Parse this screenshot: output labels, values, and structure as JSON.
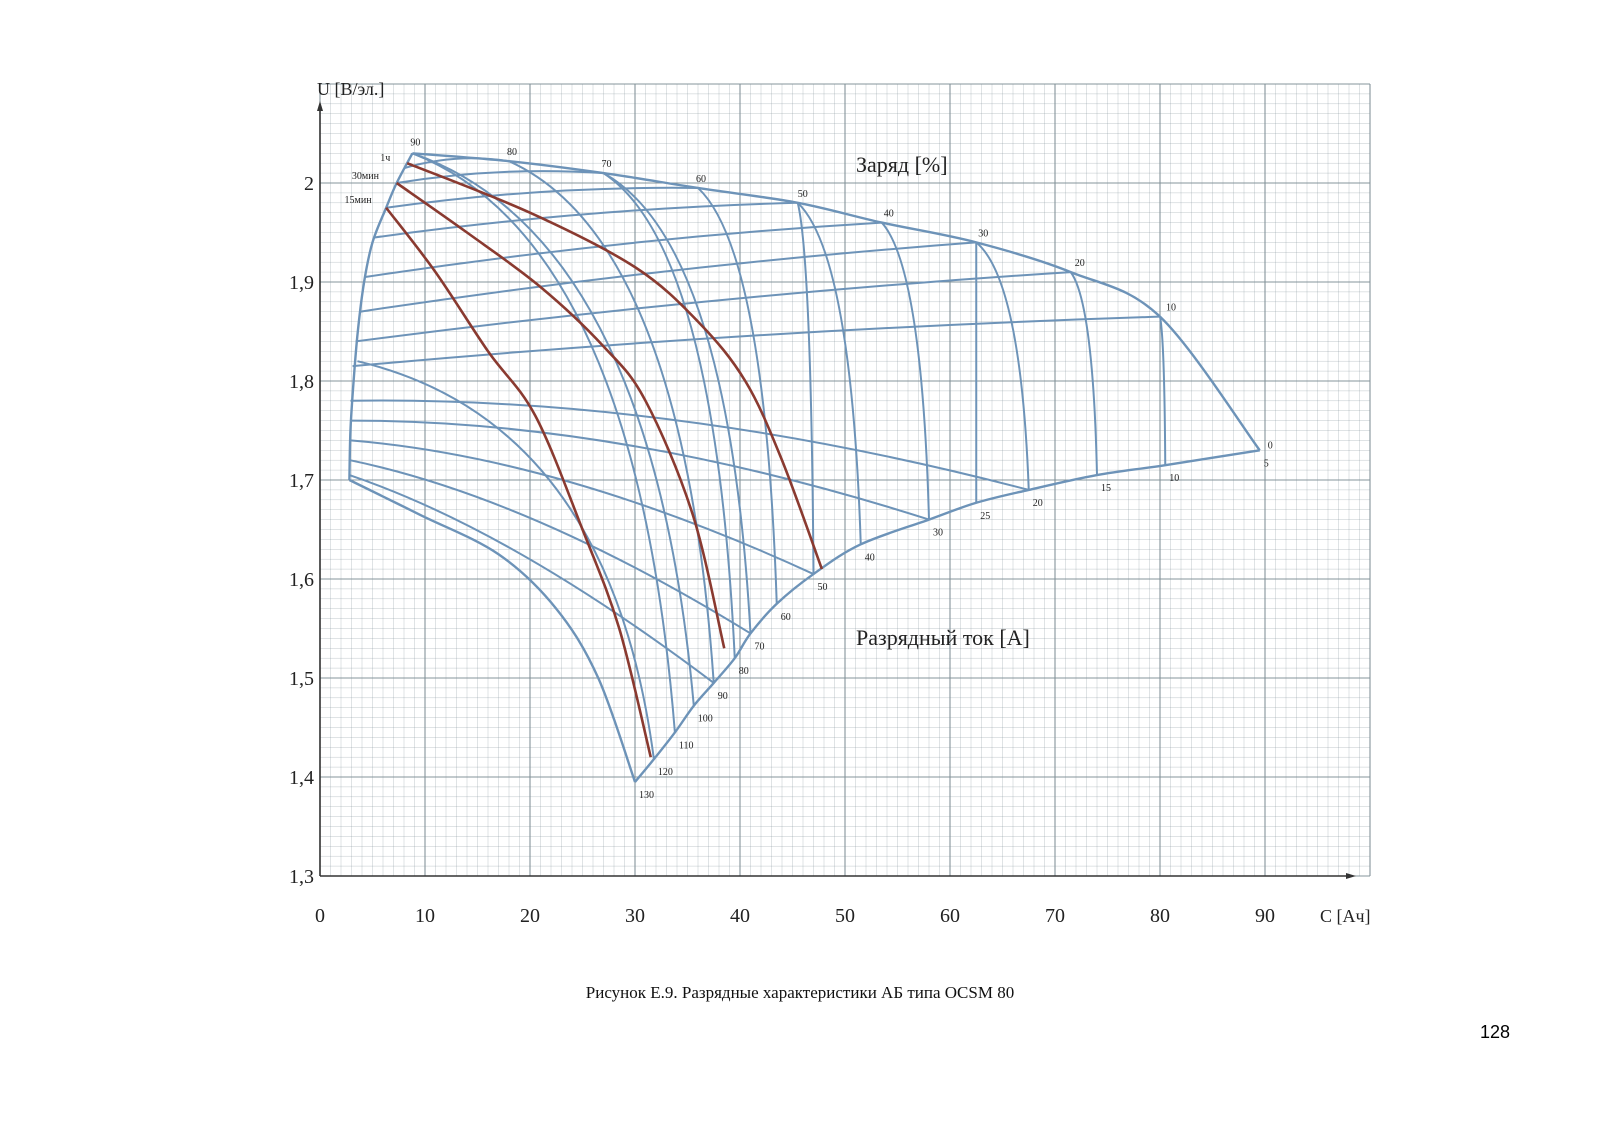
{
  "chart_data": {
    "type": "line",
    "xlabel": "С [Ач]",
    "ylabel": "U [В/эл.]",
    "xlim": [
      0,
      100
    ],
    "ylim": [
      1.3,
      2.1
    ],
    "x_ticks": [
      {
        "value": 0,
        "label": "0"
      },
      {
        "value": 10,
        "label": "10"
      },
      {
        "value": 20,
        "label": "20"
      },
      {
        "value": 30,
        "label": "30"
      },
      {
        "value": 40,
        "label": "40"
      },
      {
        "value": 50,
        "label": "50"
      },
      {
        "value": 60,
        "label": "60"
      },
      {
        "value": 70,
        "label": "70"
      },
      {
        "value": 80,
        "label": "80"
      },
      {
        "value": 90,
        "label": "90"
      }
    ],
    "y_ticks": [
      {
        "value": 1.3,
        "label": "1,3"
      },
      {
        "value": 1.4,
        "label": "1,4"
      },
      {
        "value": 1.5,
        "label": "1,5"
      },
      {
        "value": 1.6,
        "label": "1,6"
      },
      {
        "value": 1.7,
        "label": "1,7"
      },
      {
        "value": 1.8,
        "label": "1,8"
      },
      {
        "value": 1.9,
        "label": "1,9"
      },
      {
        "value": 2.0,
        "label": "2"
      }
    ],
    "grid": true,
    "annotations": [
      "Заряд [%]",
      "Разрядный ток [А]"
    ],
    "charge_labels": [
      "90",
      "80",
      "70",
      "60",
      "50",
      "40",
      "30",
      "20",
      "10",
      "0"
    ],
    "current_labels": [
      "5",
      "10",
      "15",
      "20",
      "25",
      "30",
      "40",
      "50",
      "60",
      "70",
      "80",
      "90",
      "100",
      "110",
      "120",
      "130"
    ],
    "time_labels": [
      "1ч",
      "30мин",
      "15мин"
    ],
    "top_envelope": [
      {
        "x": 8.8,
        "y": 2.03
      },
      {
        "x": 18,
        "y": 2.022
      },
      {
        "x": 27,
        "y": 2.01
      },
      {
        "x": 36,
        "y": 1.995
      },
      {
        "x": 45.5,
        "y": 1.98
      },
      {
        "x": 53.5,
        "y": 1.96
      },
      {
        "x": 62.5,
        "y": 1.94
      },
      {
        "x": 71.5,
        "y": 1.91
      },
      {
        "x": 80,
        "y": 1.865
      },
      {
        "x": 89.5,
        "y": 1.73
      }
    ],
    "left_envelope": [
      {
        "x": 8.8,
        "y": 2.03
      },
      {
        "x": 7.3,
        "y": 2.0
      },
      {
        "x": 6.3,
        "y": 1.975
      },
      {
        "x": 5.0,
        "y": 1.94
      },
      {
        "x": 4.2,
        "y": 1.9
      },
      {
        "x": 3.6,
        "y": 1.85
      },
      {
        "x": 3.2,
        "y": 1.8
      },
      {
        "x": 2.9,
        "y": 1.75
      },
      {
        "x": 2.8,
        "y": 1.7
      }
    ],
    "discharge_end_curve": [
      {
        "x": 2.8,
        "y": 1.7
      },
      {
        "x": 9.5,
        "y": 1.665
      },
      {
        "x": 17,
        "y": 1.625
      },
      {
        "x": 22.5,
        "y": 1.57
      },
      {
        "x": 26.5,
        "y": 1.5
      },
      {
        "x": 30,
        "y": 1.395
      }
    ],
    "current_endpoints": [
      {
        "label": "130",
        "x": 30,
        "y": 1.395
      },
      {
        "label": "120",
        "x": 31.8,
        "y": 1.418
      },
      {
        "label": "110",
        "x": 33.8,
        "y": 1.445
      },
      {
        "label": "100",
        "x": 35.6,
        "y": 1.472
      },
      {
        "label": "90",
        "x": 37.5,
        "y": 1.495
      },
      {
        "label": "80",
        "x": 39.5,
        "y": 1.52
      },
      {
        "label": "70",
        "x": 41,
        "y": 1.545
      },
      {
        "label": "60",
        "x": 43.5,
        "y": 1.575
      },
      {
        "label": "50",
        "x": 47,
        "y": 1.605
      },
      {
        "label": "40",
        "x": 51.5,
        "y": 1.635
      },
      {
        "label": "30",
        "x": 58,
        "y": 1.66
      },
      {
        "label": "25",
        "x": 62.5,
        "y": 1.677
      },
      {
        "label": "20",
        "x": 67.5,
        "y": 1.69
      },
      {
        "label": "15",
        "x": 74,
        "y": 1.705
      },
      {
        "label": "10",
        "x": 80.5,
        "y": 1.715
      },
      {
        "label": "5",
        "x": 89.5,
        "y": 1.73
      }
    ],
    "time_curves": [
      {
        "name": "1ч",
        "points": [
          {
            "x": 8.3,
            "y": 2.02
          },
          {
            "x": 20,
            "y": 1.97
          },
          {
            "x": 30,
            "y": 1.915
          },
          {
            "x": 36,
            "y": 1.86
          },
          {
            "x": 40.5,
            "y": 1.8
          },
          {
            "x": 44,
            "y": 1.72
          },
          {
            "x": 47.8,
            "y": 1.61
          }
        ]
      },
      {
        "name": "30мин",
        "points": [
          {
            "x": 7.3,
            "y": 2.0
          },
          {
            "x": 14,
            "y": 1.95
          },
          {
            "x": 21,
            "y": 1.895
          },
          {
            "x": 27,
            "y": 1.835
          },
          {
            "x": 31,
            "y": 1.78
          },
          {
            "x": 35.5,
            "y": 1.665
          },
          {
            "x": 38.5,
            "y": 1.53
          }
        ]
      },
      {
        "name": "15мин",
        "points": [
          {
            "x": 6.3,
            "y": 1.975
          },
          {
            "x": 11,
            "y": 1.91
          },
          {
            "x": 16,
            "y": 1.83
          },
          {
            "x": 20.5,
            "y": 1.765
          },
          {
            "x": 25,
            "y": 1.65
          },
          {
            "x": 28.5,
            "y": 1.55
          },
          {
            "x": 31.5,
            "y": 1.42
          }
        ]
      }
    ]
  },
  "caption": "Рисунок Е.9. Разрядные характеристики АБ типа OCSM 80",
  "page_number": "128",
  "colors": {
    "grid": "#7f8f96",
    "curves": "#6d93b8",
    "time_curves": "#8a3a30",
    "text": "#222222"
  }
}
